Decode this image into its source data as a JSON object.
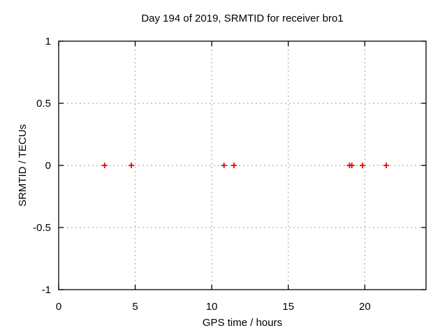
{
  "chart_data": {
    "type": "scatter",
    "title": "Day 194 of 2019, SRMTID for receiver bro1",
    "xlabel": "GPS time / hours",
    "ylabel": "SRMTID / TECUs",
    "xlim": [
      0,
      24
    ],
    "ylim": [
      -1,
      1
    ],
    "xticks": [
      0,
      5,
      10,
      15,
      20
    ],
    "yticks": [
      -1,
      -0.5,
      0,
      0.5,
      1
    ],
    "grid": true,
    "legend": "none",
    "marker": "plus",
    "colors": {
      "marker": "#ee0000",
      "grid": "#b0b0b0",
      "axis": "#000000",
      "text": "#000000",
      "background": "#ffffff"
    },
    "series": [
      {
        "name": "SRMTID",
        "marker": "plus",
        "color": "#ee0000",
        "points": [
          {
            "x": 3.0,
            "y": 0
          },
          {
            "x": 4.75,
            "y": 0
          },
          {
            "x": 10.8,
            "y": 0
          },
          {
            "x": 11.45,
            "y": 0
          },
          {
            "x": 19.0,
            "y": 0
          },
          {
            "x": 19.15,
            "y": 0
          },
          {
            "x": 19.85,
            "y": 0
          },
          {
            "x": 21.4,
            "y": 0
          }
        ]
      }
    ]
  }
}
